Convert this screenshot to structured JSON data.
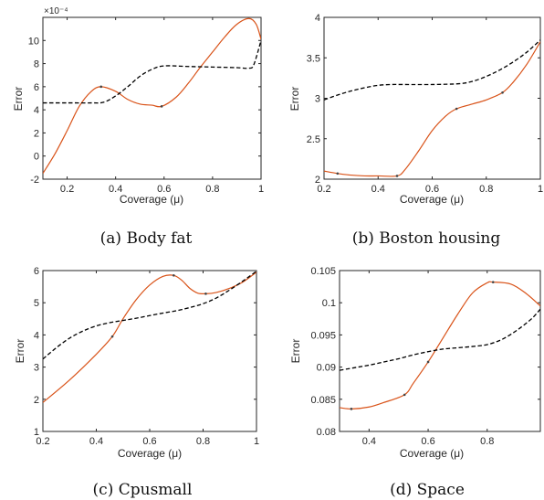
{
  "figure": {
    "colors": {
      "model": "#d95319",
      "baseline": "#000000",
      "axis": "#262626"
    }
  },
  "chart_data": [
    {
      "type": "line",
      "caption": "(a) Body fat",
      "xlabel": "Coverage (μ)",
      "ylabel": "Error",
      "exponent": "×10⁻⁴",
      "xlim": [
        0.1,
        1.0
      ],
      "ylim": [
        -2,
        12
      ],
      "xticks": [
        0.2,
        0.4,
        0.6,
        0.8,
        1
      ],
      "xtick_labels": [
        "0.2",
        "0.4",
        "0.6",
        "0.8",
        "1"
      ],
      "yticks": [
        -2,
        0,
        2,
        4,
        6,
        8,
        10
      ],
      "ytick_labels": [
        "-2",
        "0",
        "2",
        "4",
        "6",
        "8",
        "10"
      ],
      "series": [
        {
          "style": "solid-orange",
          "x": [
            0.1,
            0.15,
            0.2,
            0.25,
            0.3,
            0.34,
            0.4,
            0.45,
            0.5,
            0.55,
            0.59,
            0.65,
            0.7,
            0.75,
            0.8,
            0.85,
            0.9,
            0.95,
            0.98,
            1.0
          ],
          "y": [
            -1.5,
            0.2,
            2.2,
            4.3,
            5.6,
            6.0,
            5.6,
            4.9,
            4.5,
            4.4,
            4.3,
            5.1,
            6.3,
            7.7,
            9.0,
            10.3,
            11.4,
            11.9,
            11.4,
            10.1
          ],
          "markers": [
            0.34,
            0.59
          ]
        },
        {
          "style": "dashed-black",
          "x": [
            0.1,
            0.2,
            0.3,
            0.35,
            0.4,
            0.45,
            0.5,
            0.55,
            0.6,
            0.7,
            0.8,
            0.9,
            0.95,
            0.97,
            1.0
          ],
          "y": [
            4.6,
            4.6,
            4.6,
            4.65,
            5.2,
            6.0,
            6.9,
            7.5,
            7.8,
            7.75,
            7.7,
            7.65,
            7.6,
            7.9,
            10.0
          ]
        }
      ]
    },
    {
      "type": "line",
      "caption": "(b) Boston housing",
      "xlabel": "Coverage (μ)",
      "ylabel": "Error",
      "xlim": [
        0.2,
        1.0
      ],
      "ylim": [
        2,
        4
      ],
      "xticks": [
        0.2,
        0.4,
        0.6,
        0.8,
        1
      ],
      "xtick_labels": [
        "0.2",
        "0.4",
        "0.6",
        "0.8",
        "1"
      ],
      "yticks": [
        2,
        2.5,
        3,
        3.5,
        4
      ],
      "ytick_labels": [
        "2",
        "2.5",
        "3",
        "3.5",
        "4"
      ],
      "series": [
        {
          "style": "solid-orange",
          "x": [
            0.2,
            0.25,
            0.3,
            0.35,
            0.4,
            0.47,
            0.5,
            0.55,
            0.6,
            0.65,
            0.69,
            0.75,
            0.8,
            0.86,
            0.9,
            0.95,
            1.0
          ],
          "y": [
            2.1,
            2.07,
            2.05,
            2.04,
            2.04,
            2.04,
            2.12,
            2.35,
            2.6,
            2.78,
            2.87,
            2.93,
            2.98,
            3.07,
            3.2,
            3.42,
            3.7
          ],
          "markers": [
            0.25,
            0.47,
            0.69,
            0.86
          ]
        },
        {
          "style": "dashed-black",
          "x": [
            0.2,
            0.25,
            0.3,
            0.35,
            0.4,
            0.45,
            0.5,
            0.6,
            0.7,
            0.75,
            0.8,
            0.85,
            0.9,
            0.95,
            1.0
          ],
          "y": [
            2.98,
            3.04,
            3.09,
            3.13,
            3.16,
            3.17,
            3.17,
            3.17,
            3.18,
            3.21,
            3.27,
            3.35,
            3.45,
            3.57,
            3.72
          ]
        }
      ]
    },
    {
      "type": "line",
      "caption": "(c) Cpusmall",
      "xlabel": "Coverage (μ)",
      "ylabel": "Error",
      "xlim": [
        0.2,
        1.0
      ],
      "ylim": [
        1,
        6
      ],
      "xticks": [
        0.2,
        0.4,
        0.6,
        0.8,
        1
      ],
      "xtick_labels": [
        "0.2",
        "0.4",
        "0.6",
        "0.8",
        "1"
      ],
      "yticks": [
        1,
        2,
        3,
        4,
        5,
        6
      ],
      "ytick_labels": [
        "1",
        "2",
        "3",
        "4",
        "5",
        "6"
      ],
      "series": [
        {
          "style": "solid-orange",
          "x": [
            0.2,
            0.3,
            0.4,
            0.46,
            0.5,
            0.55,
            0.6,
            0.65,
            0.69,
            0.72,
            0.75,
            0.78,
            0.81,
            0.85,
            0.9,
            0.95,
            1.0
          ],
          "y": [
            1.9,
            2.6,
            3.4,
            3.95,
            4.5,
            5.1,
            5.55,
            5.82,
            5.85,
            5.7,
            5.45,
            5.3,
            5.28,
            5.32,
            5.45,
            5.65,
            5.95
          ],
          "markers": [
            0.46,
            0.69,
            0.81
          ]
        },
        {
          "style": "dashed-black",
          "x": [
            0.2,
            0.25,
            0.3,
            0.35,
            0.4,
            0.45,
            0.5,
            0.55,
            0.6,
            0.65,
            0.7,
            0.75,
            0.8,
            0.85,
            0.9,
            0.95,
            1.0
          ],
          "y": [
            3.25,
            3.6,
            3.9,
            4.12,
            4.28,
            4.38,
            4.45,
            4.52,
            4.6,
            4.68,
            4.75,
            4.85,
            4.97,
            5.15,
            5.4,
            5.68,
            5.98
          ]
        }
      ]
    },
    {
      "type": "line",
      "caption": "(d) Space",
      "xlabel": "Coverage (μ)",
      "ylabel": "Error",
      "xlim": [
        0.3,
        0.98
      ],
      "ylim": [
        0.08,
        0.105
      ],
      "xticks": [
        0.4,
        0.6,
        0.8
      ],
      "xtick_labels": [
        "0.4",
        "0.6",
        "0.8"
      ],
      "yticks": [
        0.08,
        0.085,
        0.09,
        0.095,
        0.1,
        0.105
      ],
      "ytick_labels": [
        "0.08",
        "0.085",
        "0.09",
        "0.095",
        "0.1",
        "0.105"
      ],
      "series": [
        {
          "style": "solid-orange",
          "x": [
            0.3,
            0.34,
            0.4,
            0.45,
            0.52,
            0.55,
            0.6,
            0.65,
            0.7,
            0.75,
            0.8,
            0.82,
            0.88,
            0.93,
            0.98
          ],
          "y": [
            0.0837,
            0.0835,
            0.0838,
            0.0845,
            0.0857,
            0.0875,
            0.0908,
            0.0945,
            0.0982,
            0.1015,
            0.1031,
            0.1032,
            0.1029,
            0.1015,
            0.0995
          ],
          "markers": [
            0.34,
            0.52,
            0.6,
            0.82
          ]
        },
        {
          "style": "dashed-black",
          "x": [
            0.3,
            0.35,
            0.4,
            0.45,
            0.5,
            0.55,
            0.6,
            0.65,
            0.7,
            0.75,
            0.8,
            0.85,
            0.9,
            0.95,
            0.98
          ],
          "y": [
            0.0895,
            0.0899,
            0.0903,
            0.0908,
            0.0913,
            0.0919,
            0.0924,
            0.0928,
            0.093,
            0.0932,
            0.0935,
            0.0943,
            0.0957,
            0.0975,
            0.099
          ]
        }
      ]
    }
  ]
}
